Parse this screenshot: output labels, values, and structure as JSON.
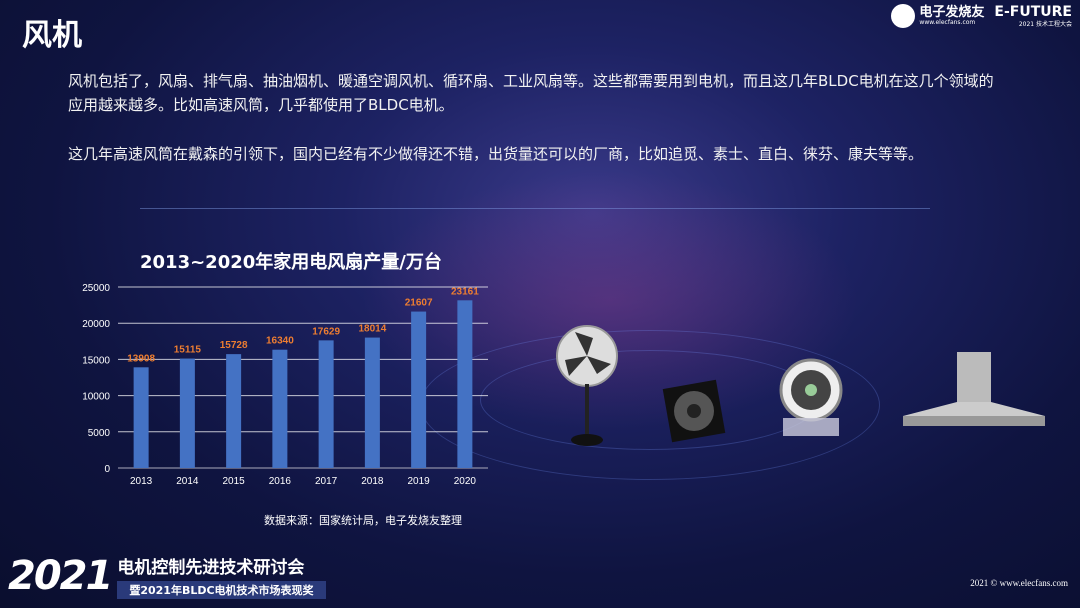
{
  "header": {
    "title": "风机",
    "logo1_name": "电子发烧友",
    "logo1_url": "www.elecfans.com",
    "logo2_name": "E-FUTURE",
    "logo2_sub": "2021 技术工程大会"
  },
  "paragraphs": [
    "风机包括了，风扇、排气扇、抽油烟机、暖通空调风机、循环扇、工业风扇等。这些都需要用到电机，而且这几年BLDC电机在这几个领域的应用越来越多。比如高速风筒，几乎都使用了BLDC电机。",
    "这几年高速风筒在戴森的引领下，国内已经有不少做得还不错，出货量还可以的厂商，比如追觅、素士、直白、徕芬、康夫等等。"
  ],
  "chart_data": {
    "type": "bar",
    "title": "2013~2020年家用电风扇产量/万台",
    "categories": [
      "2013",
      "2014",
      "2015",
      "2016",
      "2017",
      "2018",
      "2019",
      "2020"
    ],
    "values": [
      13908,
      15115,
      15728,
      16340,
      17629,
      18014,
      21607,
      23161
    ],
    "ylim": [
      0,
      25000
    ],
    "yticks": [
      "0",
      "5000",
      "10000",
      "15000",
      "20000",
      "25000"
    ],
    "grid": true,
    "bar_color": "#4472c4",
    "label_color": "#ed7d31"
  },
  "source": "数据来源：国家统计局，电子发烧友整理",
  "footer": {
    "year": "2021",
    "line1": "电机控制先进技术研讨会",
    "line2": "暨2021年BLDC电机技术市场表现奖",
    "copyright": "2021 © www.elecfans.com"
  }
}
